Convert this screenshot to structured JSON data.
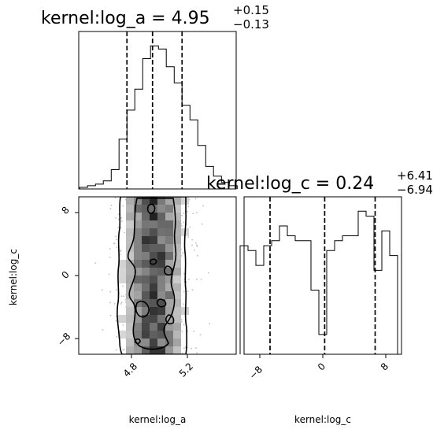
{
  "chart_data": [
    {
      "type": "histogram",
      "panel": "marginal-log_a",
      "title_param": "kernel:log_a",
      "title_value": "4.95",
      "title_upper": "+0.15",
      "title_lower": "−0.13",
      "x": [
        4.6,
        4.64,
        4.68,
        4.72,
        4.76,
        4.8,
        4.84,
        4.88,
        4.92,
        4.96,
        5.0,
        5.04,
        5.08,
        5.12,
        5.16,
        5.2,
        5.24,
        5.28,
        5.32,
        5.36
      ],
      "values": [
        1,
        2,
        3,
        5,
        12,
        31,
        49,
        62,
        81,
        89,
        87,
        76,
        66,
        52,
        43,
        27,
        14,
        8,
        4,
        2
      ],
      "xlim": [
        4.575,
        5.375
      ],
      "quantiles": [
        4.82,
        4.95,
        5.1
      ]
    },
    {
      "type": "histogram",
      "panel": "marginal-log_c",
      "title_param": "kernel:log_c",
      "title_value": "0.24",
      "title_upper": "+6.41",
      "title_lower": "−6.94",
      "x": [
        -10,
        -9,
        -8,
        -7,
        -6,
        -5,
        -4,
        -3,
        -2,
        -1,
        0,
        1,
        2,
        3,
        4,
        5,
        6,
        7,
        8,
        9
      ],
      "values": [
        22,
        21,
        18,
        22,
        23,
        26,
        24,
        23,
        23,
        13,
        4,
        21,
        23,
        24,
        24,
        29,
        28,
        17,
        25,
        20
      ],
      "xlim": [
        -10,
        10
      ],
      "quantiles": [
        -6.7,
        0.24,
        6.65
      ]
    },
    {
      "type": "heatmap",
      "panel": "joint-log_a-log_c",
      "xlabel": "kernel:log_a",
      "ylabel": "kernel:log_c",
      "xlim": [
        4.575,
        5.375
      ],
      "ylim": [
        -10,
        10
      ],
      "x_ticks": [
        "4.8",
        "5.2"
      ],
      "y_ticks": [
        "−8",
        "0",
        "8"
      ],
      "contour_levels": 3
    }
  ],
  "x_tick_labels_log_c": [
    "−8",
    "0",
    "8"
  ]
}
